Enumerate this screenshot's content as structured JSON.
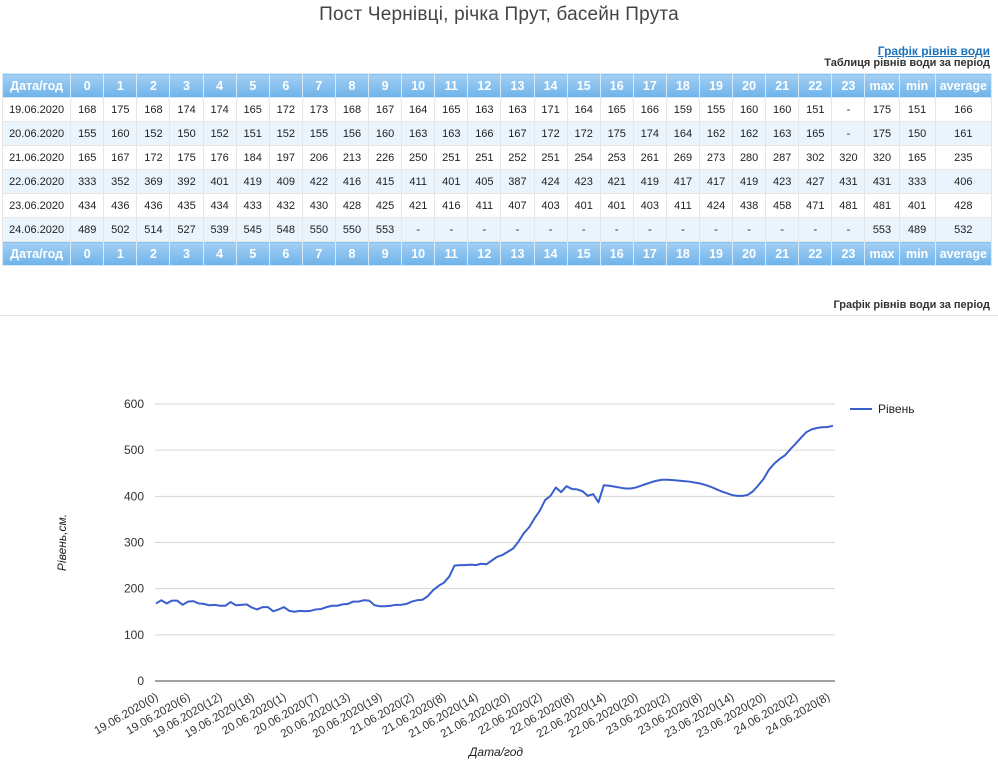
{
  "page": {
    "title": "Пост Чернівці, річка Прут, басейн Прута",
    "chart_link": "Графік рівнів води",
    "table_caption": "Таблиця рівнів води за період",
    "chart_caption": "Графік рівнів води за період"
  },
  "table": {
    "headers": [
      "Дата/год",
      "0",
      "1",
      "2",
      "3",
      "4",
      "5",
      "6",
      "7",
      "8",
      "9",
      "10",
      "11",
      "12",
      "13",
      "14",
      "15",
      "16",
      "17",
      "18",
      "19",
      "20",
      "21",
      "22",
      "23",
      "max",
      "min",
      "average"
    ],
    "rows": [
      [
        "19.06.2020",
        "168",
        "175",
        "168",
        "174",
        "174",
        "165",
        "172",
        "173",
        "168",
        "167",
        "164",
        "165",
        "163",
        "163",
        "171",
        "164",
        "165",
        "166",
        "159",
        "155",
        "160",
        "160",
        "151",
        "-",
        "175",
        "151",
        "166"
      ],
      [
        "20.06.2020",
        "155",
        "160",
        "152",
        "150",
        "152",
        "151",
        "152",
        "155",
        "156",
        "160",
        "163",
        "163",
        "166",
        "167",
        "172",
        "172",
        "175",
        "174",
        "164",
        "162",
        "162",
        "163",
        "165",
        "-",
        "175",
        "150",
        "161"
      ],
      [
        "21.06.2020",
        "165",
        "167",
        "172",
        "175",
        "176",
        "184",
        "197",
        "206",
        "213",
        "226",
        "250",
        "251",
        "251",
        "252",
        "251",
        "254",
        "253",
        "261",
        "269",
        "273",
        "280",
        "287",
        "302",
        "320",
        "320",
        "165",
        "235"
      ],
      [
        "22.06.2020",
        "333",
        "352",
        "369",
        "392",
        "401",
        "419",
        "409",
        "422",
        "416",
        "415",
        "411",
        "401",
        "405",
        "387",
        "424",
        "423",
        "421",
        "419",
        "417",
        "417",
        "419",
        "423",
        "427",
        "431",
        "431",
        "333",
        "406"
      ],
      [
        "23.06.2020",
        "434",
        "436",
        "436",
        "435",
        "434",
        "433",
        "432",
        "430",
        "428",
        "425",
        "421",
        "416",
        "411",
        "407",
        "403",
        "401",
        "401",
        "403",
        "411",
        "424",
        "438",
        "458",
        "471",
        "481",
        "481",
        "401",
        "428"
      ],
      [
        "24.06.2020",
        "489",
        "502",
        "514",
        "527",
        "539",
        "545",
        "548",
        "550",
        "550",
        "553",
        "-",
        "-",
        "-",
        "-",
        "-",
        "-",
        "-",
        "-",
        "-",
        "-",
        "-",
        "-",
        "-",
        "-",
        "553",
        "489",
        "532"
      ]
    ]
  },
  "chart_data": {
    "type": "line",
    "title": "",
    "xlabel": "Дата/год",
    "ylabel": "Рівень,см.",
    "ylim": [
      0,
      600
    ],
    "yticks": [
      0,
      100,
      200,
      300,
      400,
      500,
      600
    ],
    "grid": true,
    "legend_position": "top-right",
    "x_tick_labels": [
      "19.06.2020(0)",
      "19.06.2020(6)",
      "19.06.2020(12)",
      "19.06.2020(18)",
      "20.06.2020(1)",
      "20.06.2020(7)",
      "20.06.2020(13)",
      "20.06.2020(19)",
      "21.06.2020(2)",
      "21.06.2020(8)",
      "21.06.2020(14)",
      "21.06.2020(20)",
      "22.06.2020(2)",
      "22.06.2020(8)",
      "22.06.2020(14)",
      "22.06.2020(20)",
      "23.06.2020(2)",
      "23.06.2020(8)",
      "23.06.2020(14)",
      "23.06.2020(20)",
      "24.06.2020(2)",
      "24.06.2020(8)"
    ],
    "series": [
      {
        "name": "Рівень",
        "color": "#3a5fcd",
        "values": [
          168,
          175,
          168,
          174,
          174,
          165,
          172,
          173,
          168,
          167,
          164,
          165,
          163,
          163,
          171,
          164,
          165,
          166,
          159,
          155,
          160,
          160,
          151,
          155,
          160,
          152,
          150,
          152,
          151,
          152,
          155,
          156,
          160,
          163,
          163,
          166,
          167,
          172,
          172,
          175,
          174,
          164,
          162,
          162,
          163,
          165,
          165,
          167,
          172,
          175,
          176,
          184,
          197,
          206,
          213,
          226,
          250,
          251,
          251,
          252,
          251,
          254,
          253,
          261,
          269,
          273,
          280,
          287,
          302,
          320,
          333,
          352,
          369,
          392,
          401,
          419,
          409,
          422,
          416,
          415,
          411,
          401,
          405,
          387,
          424,
          423,
          421,
          419,
          417,
          417,
          419,
          423,
          427,
          431,
          434,
          436,
          436,
          435,
          434,
          433,
          432,
          430,
          428,
          425,
          421,
          416,
          411,
          407,
          403,
          401,
          401,
          403,
          411,
          424,
          438,
          458,
          471,
          481,
          489,
          502,
          514,
          527,
          539,
          545,
          548,
          550,
          550,
          553
        ]
      }
    ]
  }
}
